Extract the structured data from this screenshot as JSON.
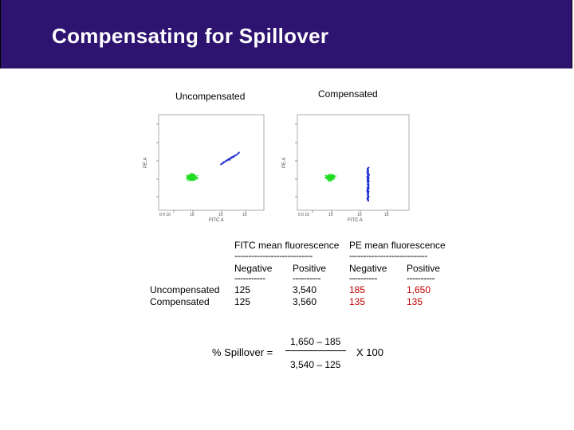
{
  "slide": {
    "title": "Compensating for Spillover",
    "header_color": "#2e1370"
  },
  "plots": {
    "uncompensated_label": "Uncompensated",
    "compensated_label": "Compensated",
    "y_axis_label": "PE A",
    "x_axis_label": "FITC A",
    "x_tick_labels": [
      "0 0 10",
      "10",
      "10",
      "10"
    ],
    "cluster_colors": {
      "negative": "#22dd22",
      "positive": "#1a2bd0"
    }
  },
  "table": {
    "fitc_header": "FITC mean fluorescence",
    "pe_header": "PE mean fluorescence",
    "fitc_rule": "----------------------------",
    "pe_rule": "----------------------------",
    "col_negative": "Negative",
    "col_positive": "Positive",
    "sub_rule_1": "-----------",
    "sub_rule_2": "----------",
    "sub_rule_3": "----------",
    "sub_rule_4": "----------",
    "rows": [
      {
        "label": "Uncompensated",
        "fitc_neg": "125",
        "fitc_pos": "3,540",
        "pe_neg": "185",
        "pe_pos": "1,650"
      },
      {
        "label": "Compensated",
        "fitc_neg": "125",
        "fitc_pos": "3,560",
        "pe_neg": "135",
        "pe_pos": "135"
      }
    ],
    "highlight_color": "#c00000"
  },
  "formula": {
    "label": "% Spillover  =",
    "numerator": "1,650 – 185",
    "denominator": "3,540 – 125",
    "multiplier": "X  100"
  }
}
